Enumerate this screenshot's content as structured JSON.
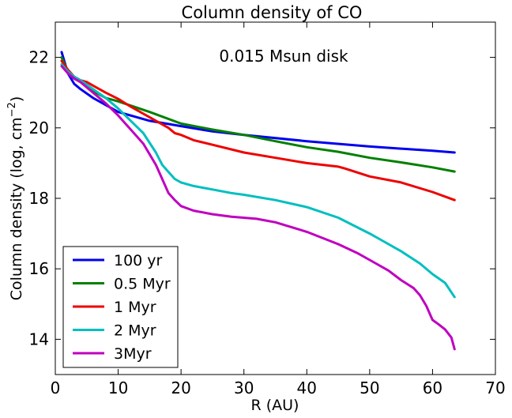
{
  "chart_data": {
    "type": "line",
    "title": "Column density of CO",
    "xlabel": "R (AU)",
    "ylabel_main": "Column density (log, cm",
    "ylabel_exp": "−2",
    "ylabel_close": ")",
    "annotation": "0.015 Msun disk",
    "xlim": [
      0,
      70
    ],
    "ylim": [
      13,
      23
    ],
    "xticks": [
      0,
      10,
      20,
      30,
      40,
      50,
      60,
      70
    ],
    "yticks": [
      14,
      16,
      18,
      20,
      22
    ],
    "legend_position": "lower-left",
    "grid": false,
    "series": [
      {
        "name": "100 yr",
        "color": "#0000ee",
        "x": [
          1,
          2,
          3,
          4,
          6,
          8,
          10,
          15,
          20,
          25,
          30,
          40,
          50,
          60,
          63.5
        ],
        "y": [
          22.15,
          21.55,
          21.25,
          21.1,
          20.85,
          20.65,
          20.45,
          20.2,
          20.05,
          19.9,
          19.8,
          19.62,
          19.47,
          19.35,
          19.3
        ]
      },
      {
        "name": "0.5 Myr",
        "color": "#008000",
        "x": [
          1,
          2,
          3,
          4,
          6,
          8,
          10,
          15,
          20,
          25,
          30,
          35,
          40,
          45,
          50,
          55,
          60,
          63.5
        ],
        "y": [
          22.0,
          21.6,
          21.4,
          21.3,
          21.05,
          20.85,
          20.75,
          20.45,
          20.12,
          19.95,
          19.8,
          19.62,
          19.45,
          19.32,
          19.15,
          19.02,
          18.88,
          18.76
        ]
      },
      {
        "name": "1 Myr",
        "color": "#ee0000",
        "x": [
          1,
          2,
          3,
          4,
          5,
          6,
          8,
          10,
          12,
          15,
          18,
          19,
          20,
          22,
          25,
          30,
          35,
          40,
          45,
          46,
          50,
          55,
          60,
          63.5
        ],
        "y": [
          21.9,
          21.65,
          21.45,
          21.35,
          21.3,
          21.2,
          21.0,
          20.82,
          20.6,
          20.3,
          20.0,
          19.85,
          19.8,
          19.65,
          19.52,
          19.3,
          19.15,
          19.0,
          18.9,
          18.85,
          18.62,
          18.45,
          18.18,
          17.95
        ]
      },
      {
        "name": "2 Myr",
        "color": "#00bfbf",
        "x": [
          1,
          2,
          3,
          4,
          6,
          8,
          10,
          12,
          14,
          16,
          17,
          18,
          19,
          20,
          22,
          25,
          28,
          30,
          35,
          40,
          45,
          50,
          52,
          55,
          58,
          60,
          62,
          63.5
        ],
        "y": [
          21.8,
          21.6,
          21.45,
          21.35,
          21.1,
          20.85,
          20.55,
          20.2,
          19.85,
          19.3,
          18.95,
          18.75,
          18.55,
          18.45,
          18.35,
          18.25,
          18.15,
          18.1,
          17.95,
          17.75,
          17.45,
          17.0,
          16.8,
          16.5,
          16.15,
          15.85,
          15.6,
          15.2
        ]
      },
      {
        "name": "3Myr",
        "color": "#bf00bf",
        "x": [
          1,
          2,
          3,
          4,
          6,
          8,
          10,
          12,
          14,
          15,
          16,
          17,
          18,
          19,
          20,
          22,
          25,
          28,
          32,
          35,
          40,
          45,
          48,
          50,
          53,
          55,
          57,
          58,
          59,
          60,
          61,
          62,
          63,
          63.5
        ],
        "y": [
          21.75,
          21.55,
          21.4,
          21.3,
          21.0,
          20.7,
          20.35,
          19.95,
          19.55,
          19.25,
          18.95,
          18.55,
          18.15,
          17.95,
          17.78,
          17.65,
          17.55,
          17.48,
          17.42,
          17.32,
          17.05,
          16.7,
          16.45,
          16.25,
          15.95,
          15.68,
          15.45,
          15.25,
          14.95,
          14.55,
          14.42,
          14.28,
          14.05,
          13.72
        ]
      }
    ]
  }
}
